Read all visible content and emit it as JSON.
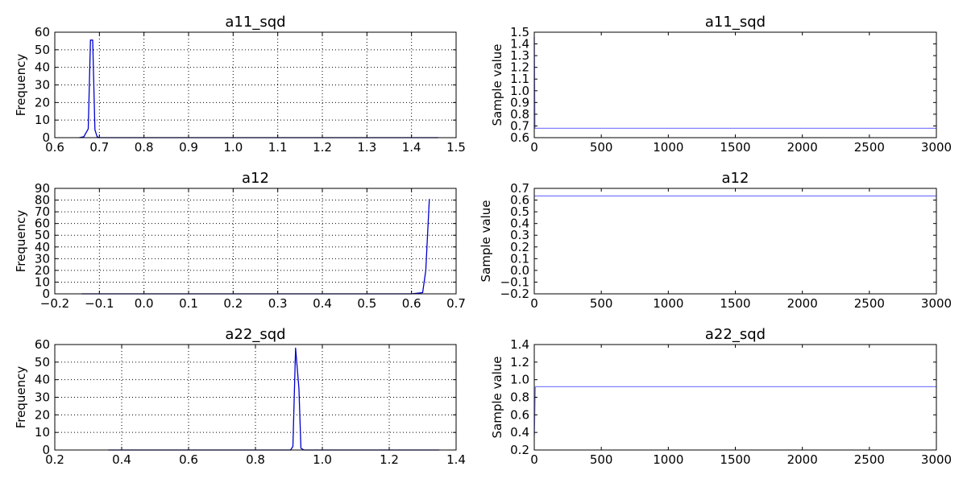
{
  "figure": {
    "colors": {
      "hist_line": "#0000cc",
      "trace_line": "#8080ff",
      "grid": "#000000",
      "axes": "#000000"
    }
  },
  "chart_data": [
    {
      "type": "line",
      "title": "a11_sqd",
      "xlabel": "",
      "ylabel": "Frequency",
      "xlim": [
        0.6,
        1.5
      ],
      "ylim": [
        0,
        60
      ],
      "xticks": [
        0.6,
        0.7,
        0.8,
        0.9,
        1.0,
        1.1,
        1.2,
        1.3,
        1.4,
        1.5
      ],
      "xtick_labels": [
        "0.6",
        "0.7",
        "0.8",
        "0.9",
        "1.0",
        "1.1",
        "1.2",
        "1.3",
        "1.4",
        "1.5"
      ],
      "yticks": [
        0,
        10,
        20,
        30,
        40,
        50,
        60
      ],
      "ytick_labels": [
        "0",
        "10",
        "20",
        "30",
        "40",
        "50",
        "60"
      ],
      "grid": true,
      "series": [
        {
          "x": [
            0.655,
            0.665,
            0.675,
            0.68,
            0.685,
            0.69,
            0.695,
            0.7,
            0.71,
            1.46
          ],
          "y": [
            0,
            0.5,
            5,
            55.5,
            55.5,
            4.5,
            0.5,
            0,
            0,
            0
          ]
        }
      ]
    },
    {
      "type": "line",
      "title": "a11_sqd",
      "xlabel": "",
      "ylabel": "Sample value",
      "xlim": [
        0,
        3000
      ],
      "ylim": [
        0.6,
        1.5
      ],
      "xticks": [
        0,
        500,
        1000,
        1500,
        2000,
        2500,
        3000
      ],
      "xtick_labels": [
        "0",
        "500",
        "1000",
        "1500",
        "2000",
        "2500",
        "3000"
      ],
      "yticks": [
        0.6,
        0.7,
        0.8,
        0.9,
        1.0,
        1.1,
        1.2,
        1.3,
        1.4,
        1.5
      ],
      "ytick_labels": [
        "0.6",
        "0.7",
        "0.8",
        "0.9",
        "1.0",
        "1.1",
        "1.2",
        "1.3",
        "1.4",
        "1.5"
      ],
      "grid": false,
      "series": [
        {
          "x": [
            0,
            5,
            3000
          ],
          "y": [
            1.46,
            0.68,
            0.68
          ]
        }
      ]
    },
    {
      "type": "line",
      "title": "a12",
      "xlabel": "",
      "ylabel": "Frequency",
      "xlim": [
        -0.2,
        0.7
      ],
      "ylim": [
        0,
        90
      ],
      "xticks": [
        -0.2,
        -0.1,
        0.0,
        0.1,
        0.2,
        0.3,
        0.4,
        0.5,
        0.6,
        0.7
      ],
      "xtick_labels": [
        "−0.2",
        "−0.1",
        "0.0",
        "0.1",
        "0.2",
        "0.3",
        "0.4",
        "0.5",
        "0.6",
        "0.7"
      ],
      "yticks": [
        0,
        10,
        20,
        30,
        40,
        50,
        60,
        70,
        80,
        90
      ],
      "ytick_labels": [
        "0",
        "10",
        "20",
        "30",
        "40",
        "50",
        "60",
        "70",
        "80",
        "90"
      ],
      "grid": true,
      "series": [
        {
          "x": [
            -0.14,
            0.6,
            0.625,
            0.632,
            0.64
          ],
          "y": [
            0,
            0,
            1,
            20,
            81
          ]
        }
      ]
    },
    {
      "type": "line",
      "title": "a12",
      "xlabel": "",
      "ylabel": "Sample value",
      "xlim": [
        0,
        3000
      ],
      "ylim": [
        -0.2,
        0.7
      ],
      "xticks": [
        0,
        500,
        1000,
        1500,
        2000,
        2500,
        3000
      ],
      "xtick_labels": [
        "0",
        "500",
        "1000",
        "1500",
        "2000",
        "2500",
        "3000"
      ],
      "yticks": [
        -0.2,
        -0.1,
        0.0,
        0.1,
        0.2,
        0.3,
        0.4,
        0.5,
        0.6,
        0.7
      ],
      "ytick_labels": [
        "−0.2",
        "−0.1",
        "0.0",
        "0.1",
        "0.2",
        "0.3",
        "0.4",
        "0.5",
        "0.6",
        "0.7"
      ],
      "grid": false,
      "series": [
        {
          "x": [
            0,
            3000
          ],
          "y": [
            0.635,
            0.635
          ]
        }
      ]
    },
    {
      "type": "line",
      "title": "a22_sqd",
      "xlabel": "",
      "ylabel": "Frequency",
      "xlim": [
        0.2,
        1.4
      ],
      "ylim": [
        0,
        60
      ],
      "xticks": [
        0.2,
        0.4,
        0.6,
        0.8,
        1.0,
        1.2,
        1.4
      ],
      "xtick_labels": [
        "0.2",
        "0.4",
        "0.6",
        "0.8",
        "1.0",
        "1.2",
        "1.4"
      ],
      "yticks": [
        0,
        10,
        20,
        30,
        40,
        50,
        60
      ],
      "ytick_labels": [
        "0",
        "10",
        "20",
        "30",
        "40",
        "50",
        "60"
      ],
      "grid": true,
      "series": [
        {
          "x": [
            0.36,
            0.905,
            0.912,
            0.92,
            0.93,
            0.936,
            0.945,
            1.35
          ],
          "y": [
            0,
            0,
            2,
            58,
            35,
            1,
            0,
            0
          ]
        }
      ]
    },
    {
      "type": "line",
      "title": "a22_sqd",
      "xlabel": "",
      "ylabel": "Sample value",
      "xlim": [
        0,
        3000
      ],
      "ylim": [
        0.2,
        1.4
      ],
      "xticks": [
        0,
        500,
        1000,
        1500,
        2000,
        2500,
        3000
      ],
      "xtick_labels": [
        "0",
        "500",
        "1000",
        "1500",
        "2000",
        "2500",
        "3000"
      ],
      "yticks": [
        0.2,
        0.4,
        0.6,
        0.8,
        1.0,
        1.2,
        1.4
      ],
      "ytick_labels": [
        "0.2",
        "0.4",
        "0.6",
        "0.8",
        "1.0",
        "1.2",
        "1.4"
      ],
      "grid": false,
      "series": [
        {
          "x": [
            0,
            8,
            3000
          ],
          "y": [
            0.36,
            0.92,
            0.92
          ]
        }
      ]
    }
  ]
}
